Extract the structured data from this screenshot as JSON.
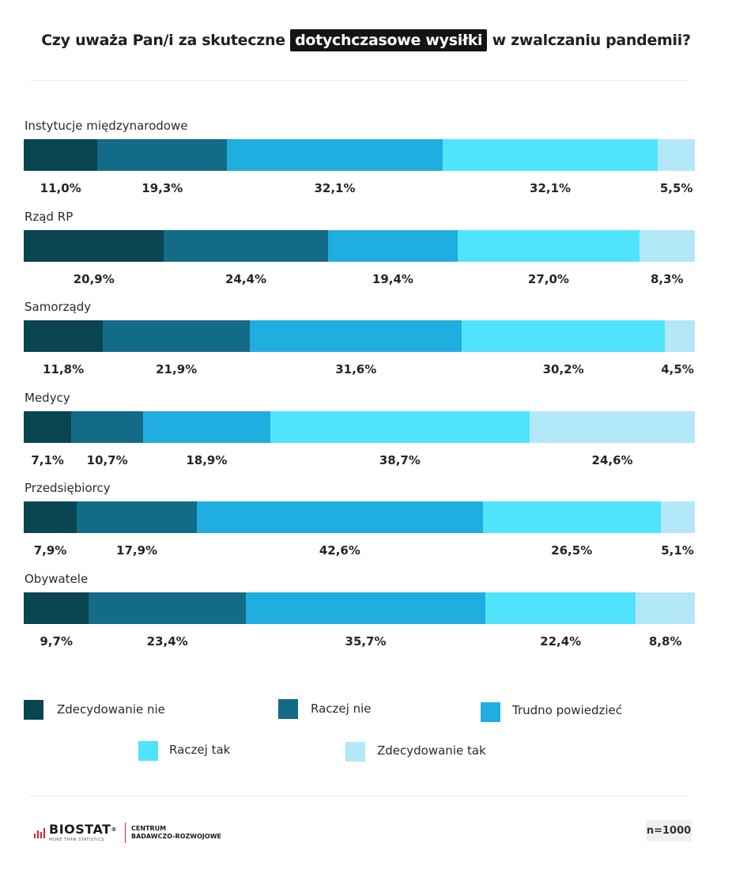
{
  "title": {
    "before": "Czy uważa Pan/i za skuteczne",
    "highlight": "dotychczasowe wysiłki",
    "after": "w zwalczaniu pandemii?"
  },
  "colors": [
    "#0a4552",
    "#126b87",
    "#20ade0",
    "#50e4fc",
    "#b3e8f8"
  ],
  "chart_data": {
    "type": "bar",
    "orientation": "horizontal-stacked-100",
    "categories": [
      "Instytucje międzynarodowe",
      "Rząd RP",
      "Samorządy",
      "Medycy",
      "Przedsiębiorcy",
      "Obywatele"
    ],
    "series": [
      {
        "name": "Zdecydowanie nie",
        "values": [
          11.0,
          20.9,
          11.8,
          7.1,
          7.9,
          9.7
        ]
      },
      {
        "name": "Raczej nie",
        "values": [
          19.3,
          24.4,
          21.9,
          10.7,
          17.9,
          23.4
        ]
      },
      {
        "name": "Trudno powiedzieć",
        "values": [
          32.1,
          19.4,
          31.6,
          18.9,
          42.6,
          35.7
        ]
      },
      {
        "name": "Raczej tak",
        "values": [
          32.1,
          27.0,
          30.2,
          38.7,
          26.5,
          22.4
        ]
      },
      {
        "name": "Zdecydowanie tak",
        "values": [
          5.5,
          8.3,
          4.5,
          24.6,
          5.1,
          8.8
        ]
      }
    ],
    "value_labels": [
      [
        "11,0%",
        "19,3%",
        "32,1%",
        "32,1%",
        "5,5%"
      ],
      [
        "20,9%",
        "24,4%",
        "19,4%",
        "27,0%",
        "8,3%"
      ],
      [
        "11,8%",
        "21,9%",
        "31,6%",
        "30,2%",
        "4,5%"
      ],
      [
        "7,1%",
        "10,7%",
        "18,9%",
        "38,7%",
        "24,6%"
      ],
      [
        "7,9%",
        "17,9%",
        "42,6%",
        "26,5%",
        "5,1%"
      ],
      [
        "9,7%",
        "23,4%",
        "35,7%",
        "22,4%",
        "8,8%"
      ]
    ],
    "unit": "%",
    "legend_position": "bottom"
  },
  "footer": {
    "brand": "BIOSTAT",
    "brand_mark": "®",
    "tagline": "MORE THAN STATISTICS",
    "org_line1": "CENTRUM",
    "org_line2": "BADAWCZO-ROZWOJOWE",
    "sample": "n=1000"
  }
}
